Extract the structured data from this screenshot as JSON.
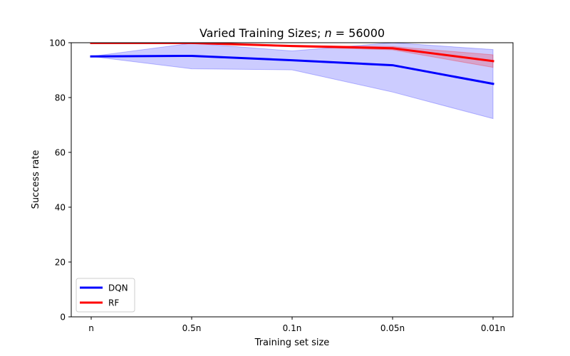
{
  "chart_data": {
    "type": "line",
    "title_prefix": "Varied Training Sizes; ",
    "title_var": "n",
    "title_suffix": " = 56000",
    "xlabel": "Training set size",
    "ylabel": "Success rate",
    "categories": [
      "n",
      "0.5n",
      "0.1n",
      "0.05n",
      "0.01n"
    ],
    "ylim": [
      0,
      100
    ],
    "yticks": [
      0,
      20,
      40,
      60,
      80,
      100
    ],
    "grid": false,
    "legend_position": "lower-left",
    "series": [
      {
        "name": "DQN",
        "color": "#0000ff",
        "band_color": "#0000ff",
        "values": [
          95.0,
          95.2,
          93.6,
          91.8,
          85.0
        ],
        "lower": [
          95.0,
          90.5,
          90.1,
          82.0,
          72.3
        ],
        "upper": [
          95.0,
          99.8,
          97.0,
          100.0,
          97.5
        ]
      },
      {
        "name": "RF",
        "color": "#ff0000",
        "band_color": "#ff0000",
        "values": [
          99.9,
          99.9,
          98.8,
          98.0,
          93.3
        ],
        "lower": [
          99.9,
          99.9,
          98.5,
          97.4,
          91.0
        ],
        "upper": [
          99.9,
          99.9,
          99.1,
          98.6,
          95.6
        ]
      }
    ]
  }
}
